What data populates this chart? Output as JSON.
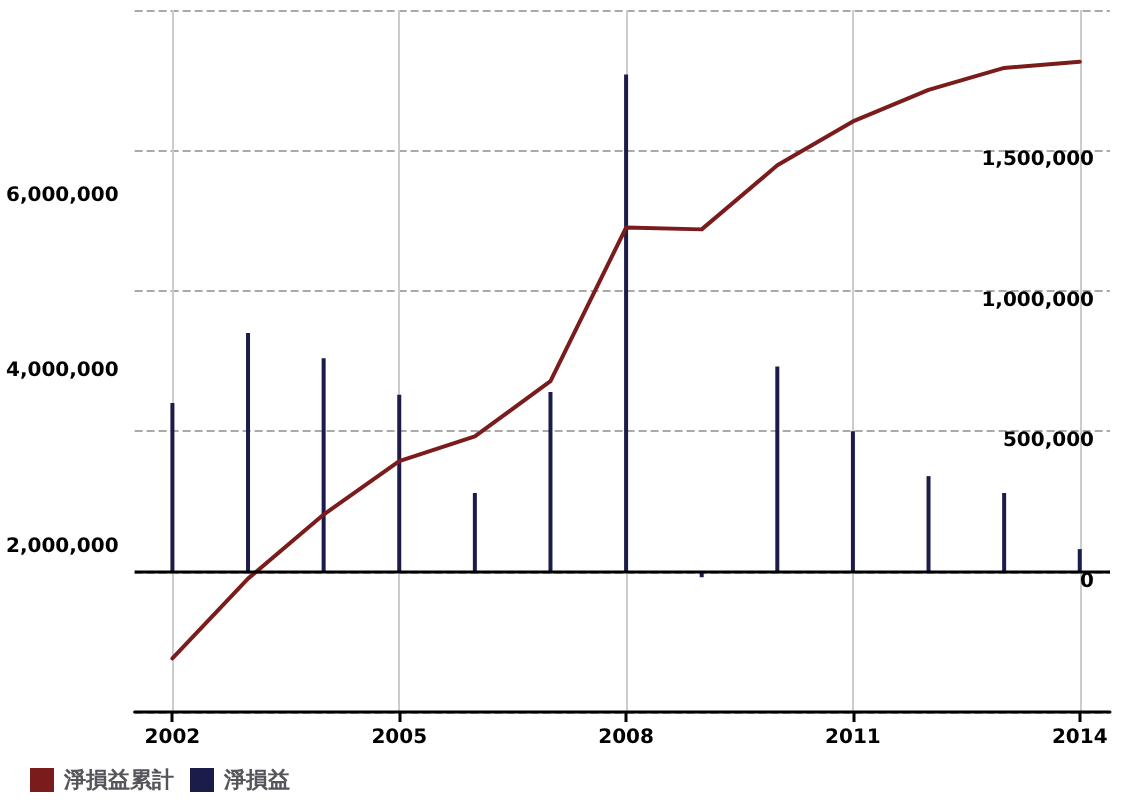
{
  "chart_data": {
    "type": "line",
    "x": [
      2002,
      2003,
      2004,
      2005,
      2006,
      2007,
      2008,
      2009,
      2010,
      2011,
      2012,
      2013,
      2014
    ],
    "xlim": [
      2001.5,
      2014.4
    ],
    "xticks": [
      2002,
      2005,
      2008,
      2011,
      2014
    ],
    "ylim": [
      0,
      8000000
    ],
    "yticks": [
      {
        "value": 2000000,
        "label": "2,000,000"
      },
      {
        "value": 4000000,
        "label": "4,000,000"
      },
      {
        "value": 6000000,
        "label": "6,000,000"
      }
    ],
    "y2lim": [
      -500000,
      2000000
    ],
    "y2ticks": [
      0,
      {
        "value": 500000,
        "label": "500,000"
      },
      {
        "value": 1000000,
        "label": "1,000,000"
      },
      {
        "value": 1500000,
        "label": "1,500,000"
      }
    ],
    "series": [
      {
        "name": "淨損益累計",
        "color": "#7a1c1c",
        "values": [
          610000,
          1520000,
          2250000,
          2860000,
          3140000,
          3770000,
          5520000,
          5500000,
          6230000,
          6730000,
          7090000,
          7340000,
          7410000
        ]
      },
      {
        "name": "淨損益",
        "type": "bar",
        "axis": "y2",
        "color": "#1c1c4a",
        "values": [
          600000,
          850000,
          760000,
          630000,
          280000,
          640000,
          1770000,
          -20000,
          730000,
          500000,
          340000,
          280000,
          80000
        ]
      }
    ],
    "ref_lines": [
      {
        "axis": "y2",
        "value": 0,
        "color": "#000000"
      }
    ],
    "grid": true,
    "legend": "bottom left",
    "marker": "none",
    "line_style": "solid"
  }
}
